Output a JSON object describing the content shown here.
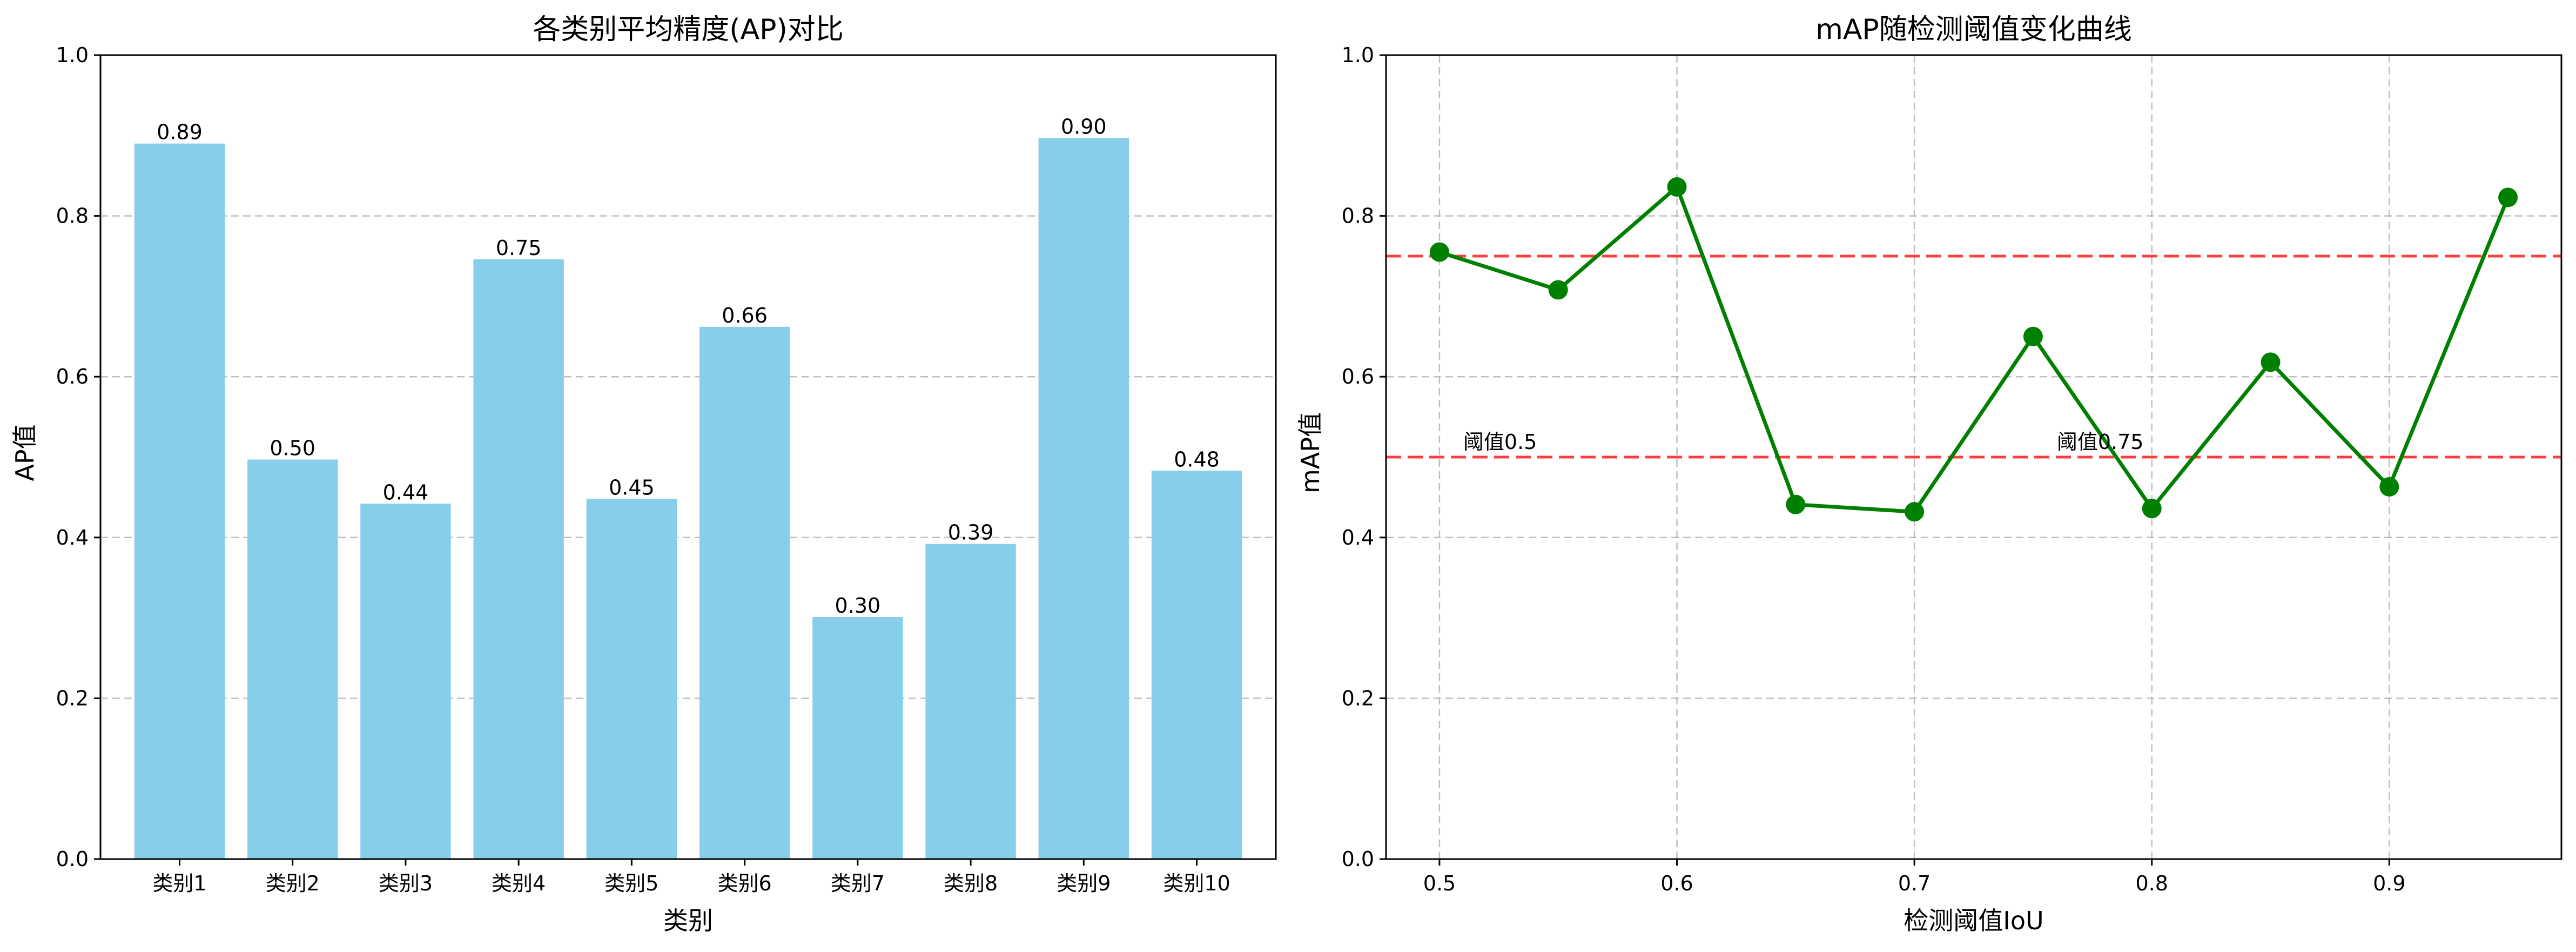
{
  "chart_data": [
    {
      "type": "bar",
      "title": "各类别平均精度(AP)对比",
      "xlabel": "类别",
      "ylabel": "AP值",
      "ylim": [
        0,
        1.0
      ],
      "yticks": [
        "0.0",
        "0.2",
        "0.4",
        "0.6",
        "0.8",
        "1.0"
      ],
      "categories": [
        "类别1",
        "类别2",
        "类别3",
        "类别4",
        "类别5",
        "类别6",
        "类别7",
        "类别8",
        "类别9",
        "类别10"
      ],
      "values": [
        0.89,
        0.497,
        0.442,
        0.746,
        0.448,
        0.662,
        0.301,
        0.392,
        0.897,
        0.483
      ],
      "value_labels": [
        "0.89",
        "0.50",
        "0.44",
        "0.75",
        "0.45",
        "0.66",
        "0.30",
        "0.39",
        "0.90",
        "0.48"
      ],
      "bar_color": "#87CEEB",
      "grid": "y-dashed"
    },
    {
      "type": "line",
      "title": "mAP随检测阈值变化曲线",
      "xlabel": "检测阈值IoU",
      "ylabel": "mAP值",
      "ylim": [
        0,
        1.0
      ],
      "xlim": [
        0.4775,
        0.9725
      ],
      "yticks": [
        "0.0",
        "0.2",
        "0.4",
        "0.6",
        "0.8",
        "1.0"
      ],
      "xticks": [
        "0.5",
        "0.6",
        "0.7",
        "0.8",
        "0.9"
      ],
      "x": [
        0.5,
        0.55,
        0.6,
        0.65,
        0.7,
        0.75,
        0.8,
        0.85,
        0.9,
        0.95
      ],
      "y": [
        0.755,
        0.708,
        0.836,
        0.441,
        0.432,
        0.65,
        0.436,
        0.618,
        0.463,
        0.823
      ],
      "line_color": "#008000",
      "reference_lines": [
        {
          "y": 0.75,
          "color": "#FF0000"
        },
        {
          "y": 0.5,
          "color": "#FF0000"
        }
      ],
      "annotations": [
        {
          "text": "阈值0.5",
          "x": 0.51,
          "y": 0.51
        },
        {
          "text": "阈值0.75",
          "x": 0.76,
          "y": 0.51
        }
      ],
      "grid": "both-dashed"
    }
  ]
}
